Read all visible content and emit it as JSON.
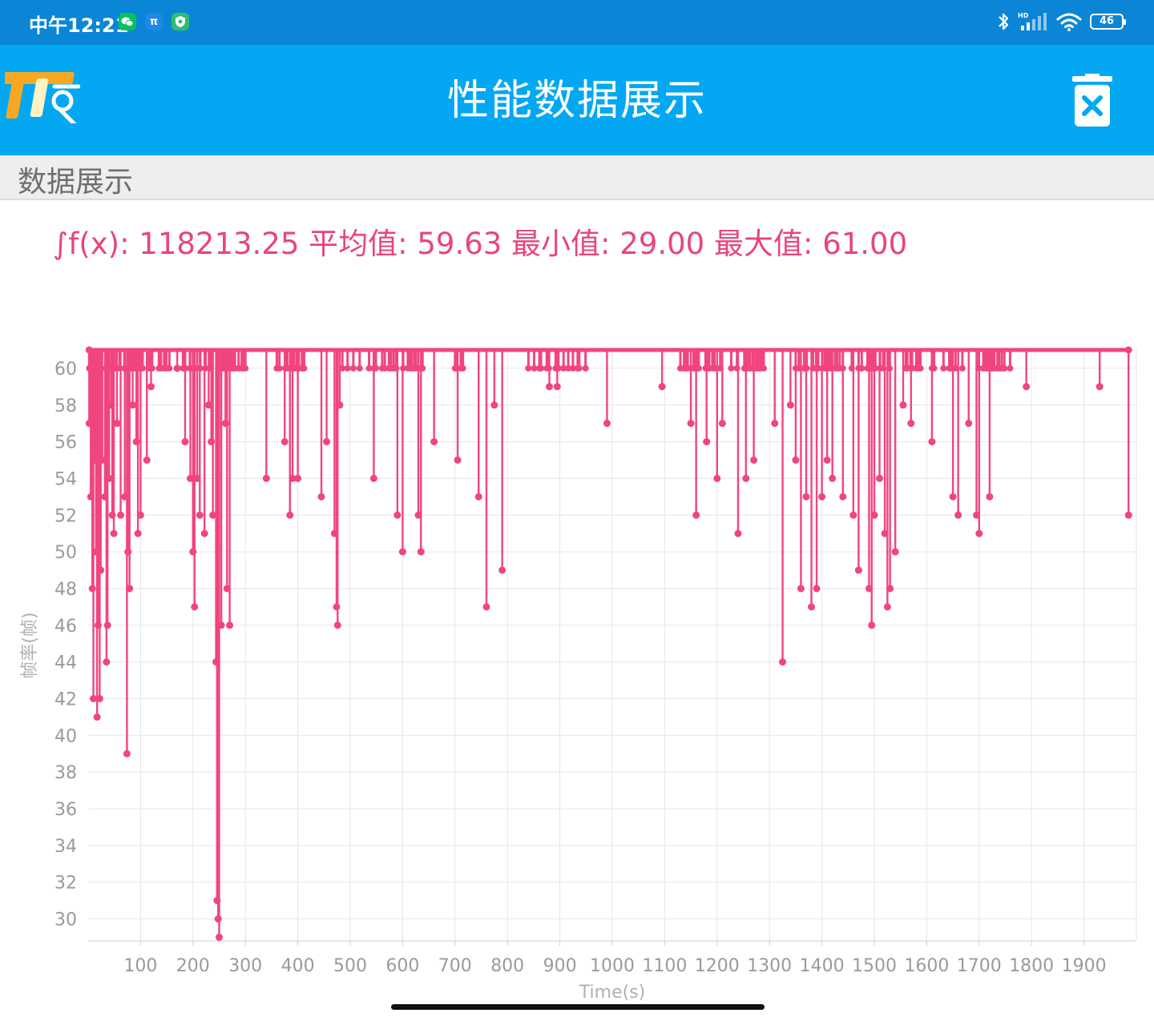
{
  "status_bar": {
    "time": "中午12:21",
    "apps": [
      {
        "icon": "wechat-icon",
        "color": "#07c160"
      },
      {
        "icon": "perfdog-icon",
        "label": "π",
        "color": "#1e88e5"
      },
      {
        "icon": "shield-icon",
        "color": "#2fbf71"
      }
    ],
    "right_icons": [
      "bluetooth-icon",
      "hd-signal-icon",
      "wifi-icon"
    ],
    "battery": "46"
  },
  "app_bar": {
    "title": "性能数据展示",
    "color": "#03a7f2"
  },
  "section": {
    "label": "数据展示"
  },
  "stats": {
    "text": "∫f(x): 118213.25 平均值: 59.63 最小值: 29.00 最大值: 61.00"
  },
  "chart_data": {
    "type": "line",
    "xlabel": "Time(s)",
    "ylabel": "帧率(帧)",
    "xlim": [
      0,
      2000
    ],
    "ylim": [
      28.8,
      61
    ],
    "xticks": [
      100,
      200,
      300,
      400,
      500,
      600,
      700,
      800,
      900,
      1000,
      1100,
      1200,
      1300,
      1400,
      1500,
      1600,
      1700,
      1800,
      1900
    ],
    "yticks": [
      30,
      32,
      34,
      36,
      38,
      40,
      42,
      44,
      46,
      48,
      50,
      52,
      54,
      56,
      58,
      60
    ],
    "grid": true,
    "color": "#f0457f",
    "baseline": 61,
    "dips": [
      [
        2,
        57
      ],
      [
        5,
        53
      ],
      [
        8,
        48
      ],
      [
        10,
        42
      ],
      [
        12,
        55
      ],
      [
        15,
        50
      ],
      [
        17,
        41
      ],
      [
        19,
        46
      ],
      [
        22,
        42
      ],
      [
        24,
        49
      ],
      [
        27,
        55
      ],
      [
        32,
        53
      ],
      [
        35,
        44
      ],
      [
        37,
        46
      ],
      [
        40,
        54
      ],
      [
        44,
        58
      ],
      [
        46,
        52
      ],
      [
        49,
        51
      ],
      [
        55,
        57
      ],
      [
        62,
        52
      ],
      [
        70,
        53
      ],
      [
        74,
        39
      ],
      [
        76,
        50
      ],
      [
        79,
        48
      ],
      [
        85,
        58
      ],
      [
        92,
        56
      ],
      [
        95,
        51
      ],
      [
        100,
        52
      ],
      [
        112,
        55
      ],
      [
        120,
        59
      ],
      [
        170,
        60
      ],
      [
        185,
        56
      ],
      [
        195,
        54
      ],
      [
        200,
        50
      ],
      [
        203,
        47
      ],
      [
        208,
        54
      ],
      [
        213,
        52
      ],
      [
        222,
        51
      ],
      [
        230,
        58
      ],
      [
        235,
        56
      ],
      [
        238,
        52
      ],
      [
        244,
        44
      ],
      [
        246,
        31
      ],
      [
        248,
        30
      ],
      [
        250,
        29
      ],
      [
        254,
        46
      ],
      [
        262,
        57
      ],
      [
        265,
        48
      ],
      [
        270,
        46
      ],
      [
        340,
        54
      ],
      [
        375,
        56
      ],
      [
        385,
        52
      ],
      [
        390,
        54
      ],
      [
        400,
        54
      ],
      [
        445,
        53
      ],
      [
        455,
        56
      ],
      [
        470,
        51
      ],
      [
        474,
        47
      ],
      [
        476,
        46
      ],
      [
        480,
        58
      ],
      [
        545,
        54
      ],
      [
        590,
        52
      ],
      [
        600,
        50
      ],
      [
        630,
        52
      ],
      [
        635,
        50
      ],
      [
        660,
        56
      ],
      [
        705,
        55
      ],
      [
        745,
        53
      ],
      [
        760,
        47
      ],
      [
        775,
        58
      ],
      [
        790,
        49
      ],
      [
        880,
        59
      ],
      [
        895,
        59
      ],
      [
        990,
        57
      ],
      [
        1095,
        59
      ],
      [
        1150,
        57
      ],
      [
        1160,
        52
      ],
      [
        1180,
        56
      ],
      [
        1200,
        54
      ],
      [
        1210,
        57
      ],
      [
        1240,
        51
      ],
      [
        1255,
        54
      ],
      [
        1270,
        55
      ],
      [
        1310,
        57
      ],
      [
        1325,
        44
      ],
      [
        1340,
        58
      ],
      [
        1350,
        55
      ],
      [
        1360,
        48
      ],
      [
        1370,
        53
      ],
      [
        1380,
        47
      ],
      [
        1390,
        48
      ],
      [
        1400,
        53
      ],
      [
        1410,
        55
      ],
      [
        1420,
        54
      ],
      [
        1440,
        53
      ],
      [
        1460,
        52
      ],
      [
        1470,
        49
      ],
      [
        1490,
        48
      ],
      [
        1495,
        46
      ],
      [
        1500,
        52
      ],
      [
        1510,
        54
      ],
      [
        1520,
        51
      ],
      [
        1525,
        47
      ],
      [
        1530,
        48
      ],
      [
        1540,
        50
      ],
      [
        1555,
        58
      ],
      [
        1570,
        57
      ],
      [
        1610,
        56
      ],
      [
        1650,
        53
      ],
      [
        1660,
        52
      ],
      [
        1680,
        57
      ],
      [
        1695,
        52
      ],
      [
        1700,
        51
      ],
      [
        1720,
        53
      ],
      [
        1790,
        59
      ],
      [
        1930,
        59
      ],
      [
        1985,
        52
      ]
    ]
  }
}
